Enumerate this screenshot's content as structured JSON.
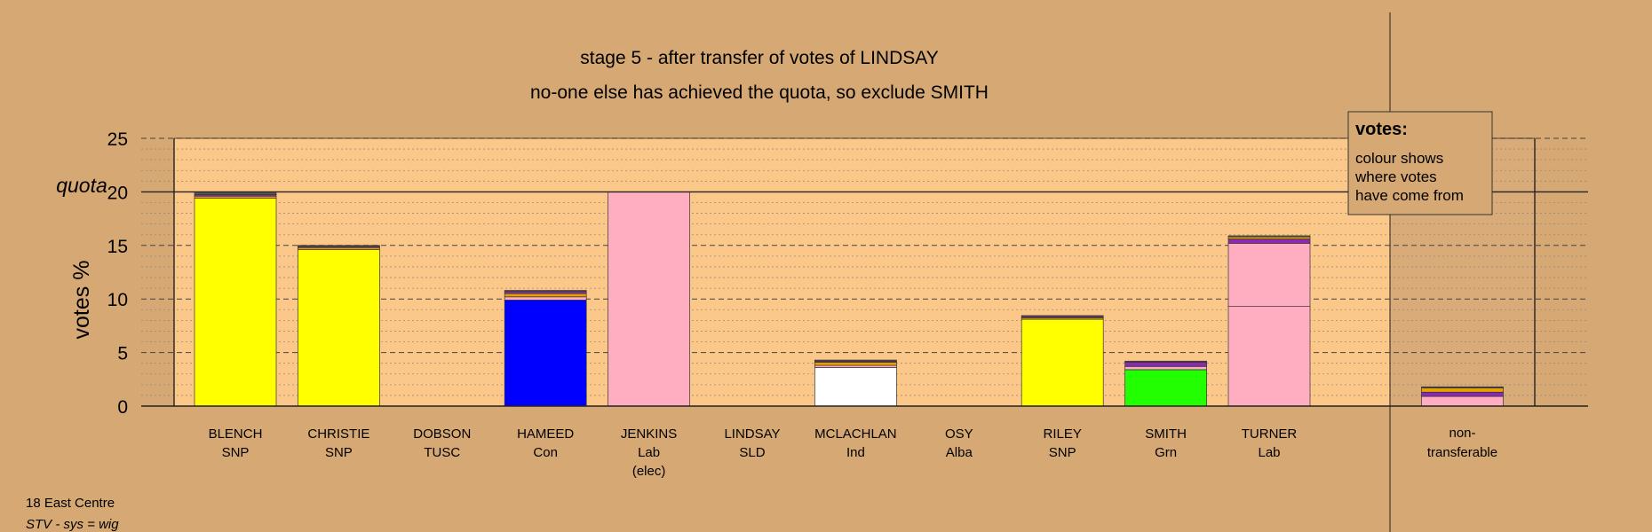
{
  "titles": {
    "line1": "stage 5 - after transfer of votes of LINDSAY",
    "line2": "no-one else has achieved the quota, so exclude SMITH"
  },
  "y_axis_label": "votes %",
  "quota_label": "quota",
  "legend": {
    "title": "votes:",
    "lines": [
      "colour shows",
      "where votes",
      "have come from"
    ]
  },
  "footer": {
    "ward": "18 East Centre",
    "system": "STV - sys = wig"
  },
  "colors": {
    "background": "#d5a874",
    "plot_area": "#fcc88a",
    "nontransferable_area": "#d8ab79",
    "SNP": "#ffff00",
    "Con": "#0000ff",
    "Lab": "#ffadc0",
    "Ind": "#ffffff",
    "Grn": "#22ff00",
    "transfer_orange": "#e8a000",
    "transfer_purple": "#8b2ab0",
    "transfer_dark": "#555555"
  },
  "chart_data": {
    "type": "bar",
    "stacked": true,
    "ylim": [
      0,
      25
    ],
    "yticks": [
      0,
      5,
      10,
      15,
      20,
      25
    ],
    "quota": 20,
    "grid": true,
    "legend_position": "top-right",
    "candidates": [
      {
        "name": "BLENCH",
        "party": "SNP",
        "segments": [
          {
            "value": 19.4,
            "color": "#ffff00"
          },
          {
            "value": 0.2,
            "color": "#e8a000"
          },
          {
            "value": 0.15,
            "color": "#8b2ab0"
          },
          {
            "value": 0.15,
            "color": "#555555"
          }
        ]
      },
      {
        "name": "CHRISTIE",
        "party": "SNP",
        "segments": [
          {
            "value": 14.6,
            "color": "#ffff00"
          },
          {
            "value": 0.2,
            "color": "#e8a000"
          },
          {
            "value": 0.1,
            "color": "#8b2ab0"
          },
          {
            "value": 0.1,
            "color": "#555555"
          }
        ]
      },
      {
        "name": "DOBSON",
        "party": "TUSC",
        "segments": []
      },
      {
        "name": "HAMEED",
        "party": "Con",
        "segments": [
          {
            "value": 9.9,
            "color": "#0000ff"
          },
          {
            "value": 0.3,
            "color": "#ffadc0"
          },
          {
            "value": 0.3,
            "color": "#e8a000"
          },
          {
            "value": 0.2,
            "color": "#8b2ab0"
          },
          {
            "value": 0.1,
            "color": "#555555"
          }
        ]
      },
      {
        "name": "JENKINS",
        "party": "Lab",
        "extra": "(elec)",
        "segments": [
          {
            "value": 20.0,
            "color": "#ffadc0"
          }
        ]
      },
      {
        "name": "LINDSAY",
        "party": "SLD",
        "segments": []
      },
      {
        "name": "MCLACHLAN",
        "party": "Ind",
        "segments": [
          {
            "value": 3.6,
            "color": "#ffffff"
          },
          {
            "value": 0.2,
            "color": "#ffadc0"
          },
          {
            "value": 0.3,
            "color": "#e8a000"
          },
          {
            "value": 0.1,
            "color": "#8b2ab0"
          },
          {
            "value": 0.1,
            "color": "#555555"
          }
        ]
      },
      {
        "name": "OSY",
        "party": "Alba",
        "segments": []
      },
      {
        "name": "RILEY",
        "party": "SNP",
        "segments": [
          {
            "value": 8.1,
            "color": "#ffff00"
          },
          {
            "value": 0.15,
            "color": "#e8a000"
          },
          {
            "value": 0.1,
            "color": "#8b2ab0"
          },
          {
            "value": 0.1,
            "color": "#555555"
          }
        ]
      },
      {
        "name": "SMITH",
        "party": "Grn",
        "segments": [
          {
            "value": 3.4,
            "color": "#22ff00"
          },
          {
            "value": 0.3,
            "color": "#ffadc0"
          },
          {
            "value": 0.4,
            "color": "#8b2ab0"
          },
          {
            "value": 0.1,
            "color": "#555555"
          }
        ]
      },
      {
        "name": "TURNER",
        "party": "Lab",
        "segments": [
          {
            "value": 9.3,
            "color": "#ffadc0"
          },
          {
            "value": 5.9,
            "color": "#ffadc0"
          },
          {
            "value": 0.4,
            "color": "#8b2ab0"
          },
          {
            "value": 0.2,
            "color": "#e8a000"
          },
          {
            "value": 0.1,
            "color": "#555555"
          }
        ]
      }
    ],
    "nontransferable": {
      "label_line1": "non-",
      "label_line2": "transferable",
      "segments": [
        {
          "value": 0.9,
          "color": "#ffadc0"
        },
        {
          "value": 0.4,
          "color": "#8b2ab0"
        },
        {
          "value": 0.4,
          "color": "#e8a000"
        },
        {
          "value": 0.1,
          "color": "#555555"
        }
      ]
    }
  }
}
